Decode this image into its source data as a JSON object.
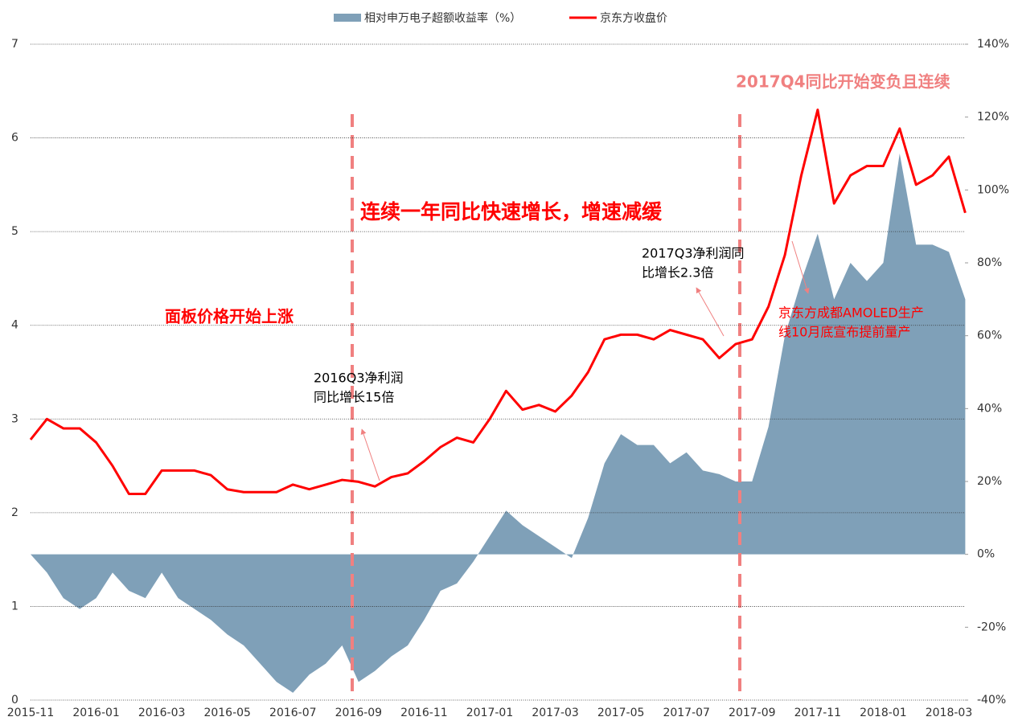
{
  "chart_data": {
    "type": "combo",
    "categories": [
      "2015-11",
      null,
      null,
      null,
      "2016-01",
      null,
      null,
      null,
      "2016-03",
      null,
      null,
      null,
      "2016-05",
      null,
      null,
      null,
      "2016-07",
      null,
      null,
      null,
      "2016-09",
      null,
      null,
      null,
      "2016-11",
      null,
      null,
      null,
      "2017-01",
      null,
      null,
      null,
      "2017-03",
      null,
      null,
      null,
      "2017-05",
      null,
      null,
      null,
      "2017-07",
      null,
      null,
      null,
      "2017-09",
      null,
      null,
      null,
      "2017-11",
      null,
      null,
      null,
      "2018-01",
      null,
      null,
      null,
      "2018-03",
      null
    ],
    "series": [
      {
        "name": "相对申万电子超额收益率（%）",
        "color": "#7fa0b8",
        "axis": "y2",
        "values": [
          0,
          -5,
          -12,
          -15,
          -12,
          -5,
          -10,
          -12,
          -5,
          -12,
          -15,
          -18,
          -22,
          -25,
          -30,
          -35,
          -38,
          -33,
          -30,
          -25,
          -35,
          -32,
          -28,
          -25,
          -18,
          -10,
          -8,
          -2,
          5,
          12,
          8,
          5,
          2,
          -1,
          10,
          25,
          33,
          30,
          30,
          25,
          28,
          23,
          22,
          20,
          20,
          35,
          60,
          75,
          88,
          70,
          80,
          75,
          80,
          110,
          85,
          85,
          83,
          70
        ]
      },
      {
        "name": "京东方收盘价",
        "color": "#ff0000",
        "axis": "y",
        "values": [
          2.78,
          3.0,
          2.9,
          2.9,
          2.75,
          2.5,
          2.2,
          2.2,
          2.45,
          2.45,
          2.45,
          2.4,
          2.25,
          2.22,
          2.22,
          2.22,
          2.3,
          2.25,
          2.3,
          2.35,
          2.33,
          2.28,
          2.38,
          2.42,
          2.55,
          2.7,
          2.8,
          2.75,
          3.0,
          3.3,
          3.1,
          3.15,
          3.08,
          3.25,
          3.5,
          3.85,
          3.9,
          3.9,
          3.85,
          3.95,
          3.9,
          3.85,
          3.65,
          3.8,
          3.85,
          4.2,
          4.75,
          5.6,
          6.3,
          5.3,
          5.6,
          5.7,
          5.7,
          6.1,
          5.5,
          5.6,
          5.8,
          5.2
        ]
      }
    ],
    "ylim": [
      0,
      7
    ],
    "yticks": [
      0,
      1,
      2,
      3,
      4,
      5,
      6,
      7
    ],
    "y2lim": [
      -40,
      140
    ],
    "y2ticks": [
      {
        "value": -40,
        "label": "-40%"
      },
      {
        "value": -20,
        "label": "-20%"
      },
      {
        "value": 0,
        "label": "0%"
      },
      {
        "value": 20,
        "label": "20%"
      },
      {
        "value": 40,
        "label": "40%"
      },
      {
        "value": 60,
        "label": "60%"
      },
      {
        "value": 80,
        "label": "80%"
      },
      {
        "value": 100,
        "label": "100%"
      },
      {
        "value": 120,
        "label": "120%"
      },
      {
        "value": 140,
        "label": "140%"
      }
    ],
    "grid": true,
    "legend": "top",
    "annotations": [
      {
        "lines": [
          "2017Q4同比开始变负且连续"
        ],
        "color": "#f08080"
      },
      {
        "lines": [
          "连续一年同比快速增长，增速减缓"
        ],
        "color": "#ff0000"
      },
      {
        "lines": [
          "面板价格开始上涨"
        ],
        "color": "#ff0000"
      },
      {
        "lines": [
          "2016Q3净利润",
          "同比增长15倍"
        ],
        "color": "#000000"
      },
      {
        "lines": [
          "2017Q3净利润同",
          "比增长2.3倍"
        ],
        "color": "#000000"
      },
      {
        "lines": [
          "京东方成都AMOLED生产",
          "线10月底宣布提前量产"
        ],
        "color": "#ff0000"
      }
    ]
  }
}
